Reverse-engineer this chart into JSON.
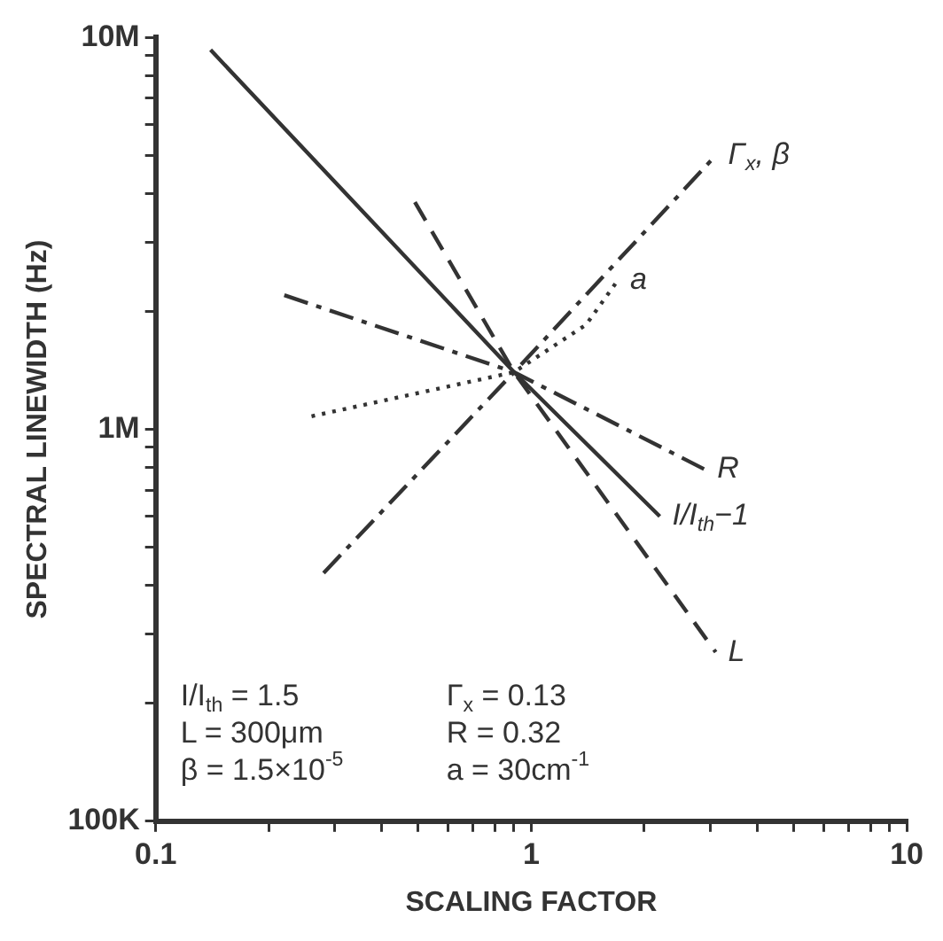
{
  "chart_data": {
    "type": "line",
    "xlabel": "SCALING FACTOR",
    "ylabel": "SPECTRAL LINEWIDTH (Hz)",
    "log": "xy",
    "grid": false,
    "legend": false,
    "marker": "none",
    "xlim": [
      0.1,
      10
    ],
    "ylim": [
      100000,
      10000000
    ],
    "xticks": [
      0.1,
      {
        "value": 0.2,
        "label": null
      },
      {
        "value": 0.3,
        "label": null
      },
      {
        "value": 0.4,
        "label": null
      },
      {
        "value": 0.5,
        "label": null
      },
      {
        "value": 0.6,
        "label": null
      },
      {
        "value": 0.7,
        "label": null
      },
      {
        "value": 0.8,
        "label": null
      },
      {
        "value": 0.9,
        "label": null
      },
      1,
      {
        "value": 2,
        "label": null
      },
      {
        "value": 3,
        "label": null
      },
      {
        "value": 4,
        "label": null
      },
      {
        "value": 5,
        "label": null
      },
      {
        "value": 6,
        "label": null
      },
      {
        "value": 7,
        "label": null
      },
      {
        "value": 8,
        "label": null
      },
      {
        "value": 9,
        "label": null
      },
      10
    ],
    "yticks": [
      {
        "value": 100000,
        "label": "100K"
      },
      {
        "value": 200000,
        "label": null
      },
      {
        "value": 300000,
        "label": null
      },
      {
        "value": 400000,
        "label": null
      },
      {
        "value": 500000,
        "label": null
      },
      {
        "value": 600000,
        "label": null
      },
      {
        "value": 700000,
        "label": null
      },
      {
        "value": 800000,
        "label": null
      },
      {
        "value": 900000,
        "label": null
      },
      {
        "value": 1000000,
        "label": "1M"
      },
      {
        "value": 2000000,
        "label": null
      },
      {
        "value": 3000000,
        "label": null
      },
      {
        "value": 4000000,
        "label": null
      },
      {
        "value": 5000000,
        "label": null
      },
      {
        "value": 6000000,
        "label": null
      },
      {
        "value": 7000000,
        "label": null
      },
      {
        "value": 8000000,
        "label": null
      },
      {
        "value": 9000000,
        "label": null
      },
      {
        "value": 10000000,
        "label": "10M"
      }
    ],
    "series": [
      {
        "name": "Γ$_{x}$, β",
        "color": "#333333",
        "line_style": "dashdot",
        "x": [
          0.28,
          0.9,
          3.1
        ],
        "values": [
          430000,
          1400000,
          5000000
        ]
      },
      {
        "name": "a",
        "color": "#333333",
        "line_style": "dotted",
        "x": [
          0.26,
          0.9,
          1.4,
          1.7
        ],
        "values": [
          1080000,
          1400000,
          1850000,
          2400000
        ]
      },
      {
        "name": "R",
        "color": "#333333",
        "line_style": "dashdot",
        "x": [
          0.22,
          0.9,
          2.9
        ],
        "values": [
          2200000,
          1400000,
          790000
        ]
      },
      {
        "name": "I/I$_{th}$−1",
        "color": "#333333",
        "line_style": "solid",
        "x": [
          0.14,
          0.9,
          2.2
        ],
        "values": [
          9300000,
          1400000,
          600000
        ]
      },
      {
        "name": "L",
        "color": "#333333",
        "line_style": "dashed",
        "x": [
          0.49,
          0.9,
          3.1
        ],
        "values": [
          3800000,
          1400000,
          270000
        ]
      }
    ],
    "annotations": [
      "I/I$_{th}$ = 1.5",
      "L = 300μm",
      "β = 1.5×10$^{-5}$",
      "Γ$_{x}$ = 0.13",
      "R = 0.32",
      "a = 30cm$^{-1}$"
    ]
  }
}
